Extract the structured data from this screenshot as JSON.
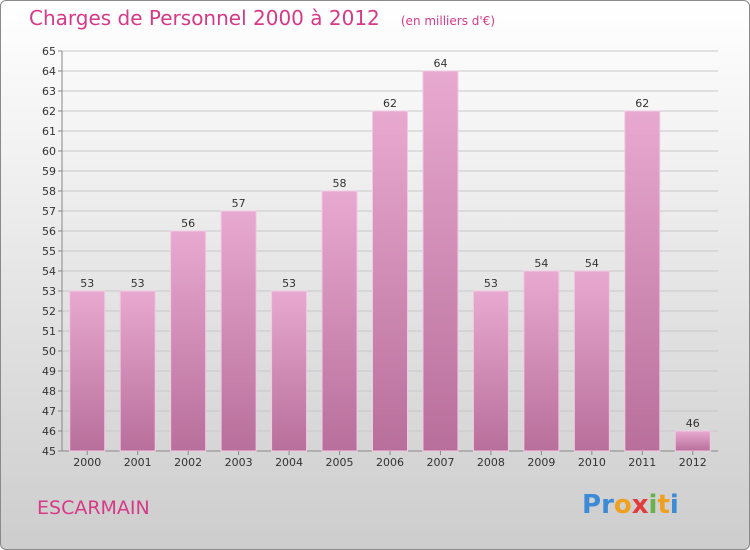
{
  "title": "Charges de Personnel 2000 à 2012",
  "subtitle": "(en milliers d'€)",
  "commune": "ESCARMAIN",
  "logo": {
    "letters": [
      {
        "ch": "P",
        "color": "#3d8ad6"
      },
      {
        "ch": "r",
        "color": "#3d8ad6"
      },
      {
        "ch": "o",
        "color": "#f0a020"
      },
      {
        "ch": "x",
        "color": "#e03c3c"
      },
      {
        "ch": "i",
        "color": "#6ab04c"
      },
      {
        "ch": "t",
        "color": "#f0a020"
      },
      {
        "ch": "i",
        "color": "#3d8ad6"
      }
    ]
  },
  "colors": {
    "bar_top": "#e8a9d0",
    "bar_bottom": "#b86f9b",
    "grid": "#c8c8c8",
    "axis": "#888888",
    "text": "#333333",
    "accent": "#d63a87"
  },
  "chart_data": {
    "type": "bar",
    "title": "Charges de Personnel 2000 à 2012",
    "subtitle": "(en milliers d'€)",
    "xlabel": "",
    "ylabel": "",
    "categories": [
      "2000",
      "2001",
      "2002",
      "2003",
      "2004",
      "2005",
      "2006",
      "2007",
      "2008",
      "2009",
      "2010",
      "2011",
      "2012"
    ],
    "values": [
      53,
      53,
      56,
      57,
      53,
      58,
      62,
      64,
      53,
      54,
      54,
      62,
      46
    ],
    "ylim": [
      45,
      65
    ],
    "yticks": [
      45,
      46,
      47,
      48,
      49,
      50,
      51,
      52,
      53,
      54,
      55,
      56,
      57,
      58,
      59,
      60,
      61,
      62,
      63,
      64,
      65
    ],
    "grid": true,
    "legend": "none"
  }
}
